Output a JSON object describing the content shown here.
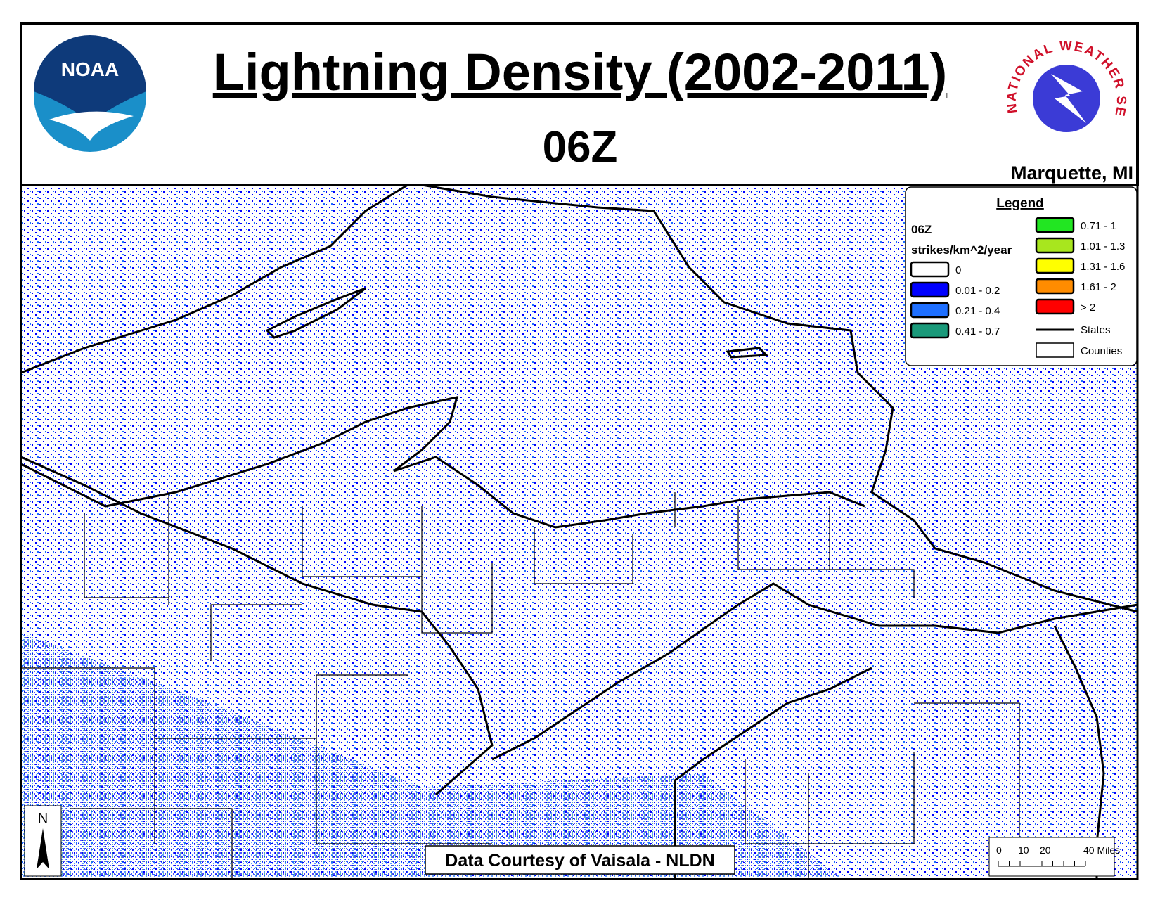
{
  "header": {
    "title": "Lightning Density (2002-2011)",
    "subtitle": "06Z",
    "office": "Marquette, MI",
    "noaa_logo": "NOAA",
    "nws_logo": "NATIONAL WEATHER SERVICE"
  },
  "legend": {
    "title": "Legend",
    "hour": "06Z",
    "units": "strikes/km^2/year",
    "items": [
      {
        "label": "0",
        "color": "#ffffff"
      },
      {
        "label": "0.01 - 0.2",
        "color": "#0000ff"
      },
      {
        "label": "0.21 - 0.4",
        "color": "#1e6fff"
      },
      {
        "label": "0.41 - 0.7",
        "color": "#1a9a7a"
      },
      {
        "label": "0.71 - 1",
        "color": "#22e622"
      },
      {
        "label": "1.01 - 1.3",
        "color": "#a8e61e"
      },
      {
        "label": "1.31 - 1.6",
        "color": "#ffff00"
      },
      {
        "label": "1.61 - 2",
        "color": "#ff8c00"
      },
      {
        "label": "> 2",
        "color": "#ff0000"
      }
    ],
    "states": "States",
    "counties": "Counties"
  },
  "attribution": "Data Courtesy of Vaisala - NLDN",
  "north_arrow": "N",
  "scale_bar": {
    "labels": [
      "0",
      "10",
      "20",
      "40 Miles"
    ]
  }
}
